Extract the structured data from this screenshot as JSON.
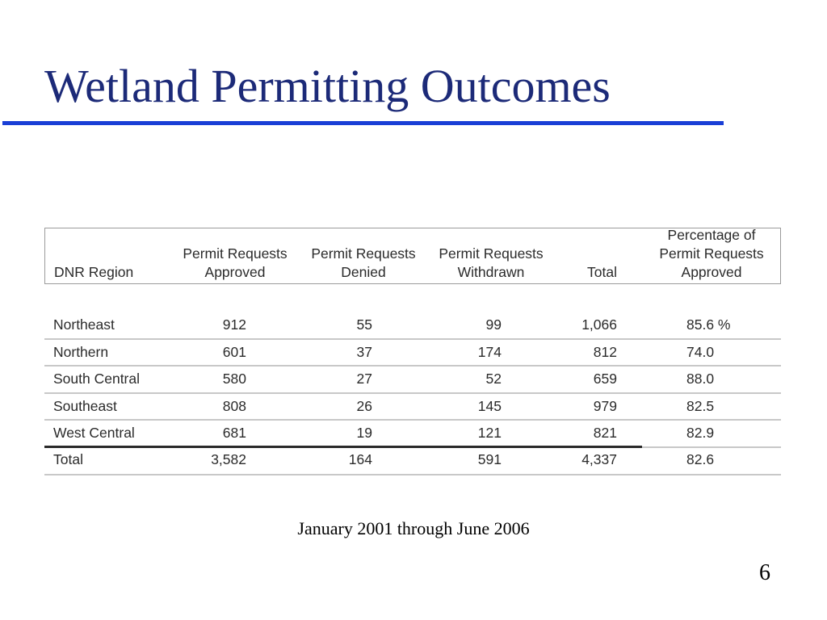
{
  "slide": {
    "title": "Wetland Permitting Outcomes",
    "caption": "January 2001 through June 2006",
    "page_number": "6",
    "accent_color": "#1a3fd6",
    "title_color": "#1c2a78"
  },
  "table": {
    "headers": {
      "region": [
        "DNR Region"
      ],
      "approved": [
        "Permit Requests",
        "Approved"
      ],
      "denied": [
        "Permit Requests",
        "Denied"
      ],
      "withdrawn": [
        "Permit Requests",
        "Withdrawn"
      ],
      "total": [
        "Total"
      ],
      "pct": [
        "Percentage of",
        "Permit Requests",
        "Approved"
      ]
    },
    "rows": [
      {
        "region": "Northeast",
        "approved": "912",
        "denied": "55",
        "withdrawn": "99",
        "total": "1,066",
        "pct": "85.6 %"
      },
      {
        "region": "Northern",
        "approved": "601",
        "denied": "37",
        "withdrawn": "174",
        "total": "812",
        "pct": "74.0"
      },
      {
        "region": "South Central",
        "approved": "580",
        "denied": "27",
        "withdrawn": "52",
        "total": "659",
        "pct": "88.0"
      },
      {
        "region": "Southeast",
        "approved": "808",
        "denied": "26",
        "withdrawn": "145",
        "total": "979",
        "pct": "82.5"
      },
      {
        "region": "West Central",
        "approved": "681",
        "denied": "19",
        "withdrawn": "121",
        "total": "821",
        "pct": "82.9"
      }
    ],
    "total_row": {
      "region": "Total",
      "approved": "3,582",
      "denied": "164",
      "withdrawn": "591",
      "total": "4,337",
      "pct": "82.6"
    }
  }
}
